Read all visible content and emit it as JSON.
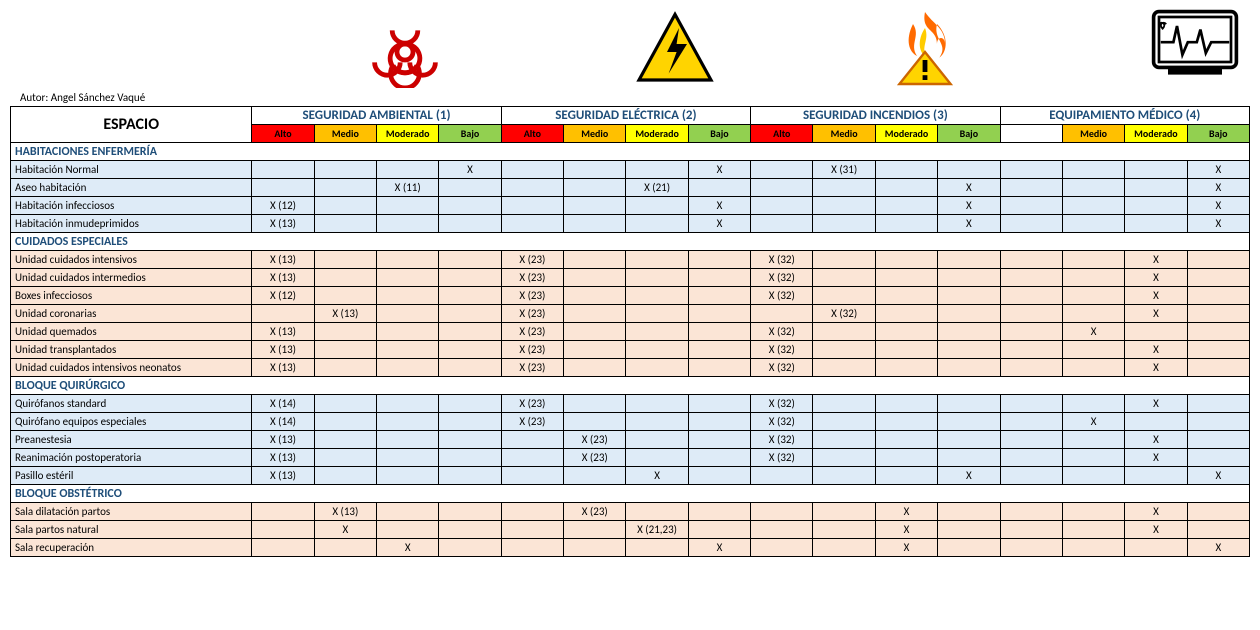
{
  "author_label": "Autor: Angel Sánchez Vaqué",
  "espacio_label": "ESPACIO",
  "categories": [
    {
      "key": "ambiental",
      "title": "SEGURIDAD AMBIENTAL (1)"
    },
    {
      "key": "electrica",
      "title": "SEGURIDAD ELÉCTRICA (2)"
    },
    {
      "key": "incendios",
      "title": "SEGURIDAD INCENDIOS (3)"
    },
    {
      "key": "medico",
      "title": "EQUIPAMIENTO MÉDICO (4)"
    }
  ],
  "risk_levels": {
    "alto": "Alto",
    "medio": "Medio",
    "moderado": "Moderado",
    "bajo": "Bajo"
  },
  "risk_colors": {
    "alto": "#ff0000",
    "medio": "#ffc000",
    "moderado": "#ffff00",
    "bajo": "#92d050"
  },
  "header_text_color": "#1f4e79",
  "section_bg": {
    "enf": "#deebf7",
    "cui": "#fbe5d6",
    "quir": "#deebf7",
    "obs": "#fbe5d6"
  },
  "medico_alto_blank": true,
  "sections": [
    {
      "id": "enf",
      "title": "HABITACIONES ENFERMERÍA",
      "rows": [
        {
          "label": "Habitación Normal",
          "cells": {
            "ambiental": {
              "bajo": "X"
            },
            "electrica": {
              "bajo": "X"
            },
            "incendios": {
              "medio": "X (31)"
            },
            "medico": {
              "bajo": "X"
            }
          }
        },
        {
          "label": "Aseo habitación",
          "cells": {
            "ambiental": {
              "moderado": "X (11)"
            },
            "electrica": {
              "moderado": "X (21)"
            },
            "incendios": {
              "bajo": "X"
            },
            "medico": {
              "bajo": "X"
            }
          }
        },
        {
          "label": "Habitación infecciosos",
          "cells": {
            "ambiental": {
              "alto": "X (12)"
            },
            "electrica": {
              "bajo": "X"
            },
            "incendios": {
              "bajo": "X"
            },
            "medico": {
              "bajo": "X"
            }
          }
        },
        {
          "label": "Habitación inmudeprimidos",
          "cells": {
            "ambiental": {
              "alto": "X (13)"
            },
            "electrica": {
              "bajo": "X"
            },
            "incendios": {
              "bajo": "X"
            },
            "medico": {
              "bajo": "X"
            }
          }
        }
      ]
    },
    {
      "id": "cui",
      "title": "CUIDADOS ESPECIALES",
      "rows": [
        {
          "label": "Unidad cuidados intensivos",
          "cells": {
            "ambiental": {
              "alto": "X (13)"
            },
            "electrica": {
              "alto": "X (23)"
            },
            "incendios": {
              "alto": "X (32)"
            },
            "medico": {
              "moderado": "X"
            }
          }
        },
        {
          "label": "Unidad cuidados intermedios",
          "cells": {
            "ambiental": {
              "alto": "X (13)"
            },
            "electrica": {
              "alto": "X (23)"
            },
            "incendios": {
              "alto": "X (32)"
            },
            "medico": {
              "moderado": "X"
            }
          }
        },
        {
          "label": "Boxes infecciosos",
          "cells": {
            "ambiental": {
              "alto": "X (12)"
            },
            "electrica": {
              "alto": "X (23)"
            },
            "incendios": {
              "alto": "X (32)"
            },
            "medico": {
              "moderado": "X"
            }
          }
        },
        {
          "label": "Unidad coronarias",
          "cells": {
            "ambiental": {
              "medio": "X (13)"
            },
            "electrica": {
              "alto": "X (23)"
            },
            "incendios": {
              "medio": "X (32)"
            },
            "medico": {
              "moderado": "X"
            }
          }
        },
        {
          "label": "Unidad quemados",
          "cells": {
            "ambiental": {
              "alto": "X (13)"
            },
            "electrica": {
              "alto": "X (23)"
            },
            "incendios": {
              "alto": "X (32)"
            },
            "medico": {
              "medio": "X"
            }
          }
        },
        {
          "label": "Unidad transplantados",
          "cells": {
            "ambiental": {
              "alto": "X (13)"
            },
            "electrica": {
              "alto": "X (23)"
            },
            "incendios": {
              "alto": "X (32)"
            },
            "medico": {
              "moderado": "X"
            }
          }
        },
        {
          "label": "Unidad cuidados intensivos neonatos",
          "cells": {
            "ambiental": {
              "alto": "X (13)"
            },
            "electrica": {
              "alto": "X (23)"
            },
            "incendios": {
              "alto": "X (32)"
            },
            "medico": {
              "moderado": "X"
            }
          }
        }
      ]
    },
    {
      "id": "quir",
      "title": "BLOQUE QUIRÚRGICO",
      "rows": [
        {
          "label": "Quirófanos  standard",
          "cells": {
            "ambiental": {
              "alto": "X (14)"
            },
            "electrica": {
              "alto": "X (23)"
            },
            "incendios": {
              "alto": "X (32)"
            },
            "medico": {
              "moderado": "X"
            }
          }
        },
        {
          "label": "Quirófano equipos especiales",
          "cells": {
            "ambiental": {
              "alto": "X (14)"
            },
            "electrica": {
              "alto": "X (23)"
            },
            "incendios": {
              "alto": "X (32)"
            },
            "medico": {
              "medio": "X"
            }
          }
        },
        {
          "label": "Preanestesia",
          "cells": {
            "ambiental": {
              "alto": "X (13)"
            },
            "electrica": {
              "medio": "X (23)"
            },
            "incendios": {
              "alto": "X (32)"
            },
            "medico": {
              "moderado": "X"
            }
          }
        },
        {
          "label": "Reanimación postoperatoria",
          "cells": {
            "ambiental": {
              "alto": "X (13)"
            },
            "electrica": {
              "medio": "X (23)"
            },
            "incendios": {
              "alto": "X (32)"
            },
            "medico": {
              "moderado": "X"
            }
          }
        },
        {
          "label": "Pasillo estéril",
          "cells": {
            "ambiental": {
              "alto": "X (13)"
            },
            "electrica": {
              "moderado": "X"
            },
            "incendios": {
              "bajo": "X"
            },
            "medico": {
              "bajo": "X"
            }
          }
        }
      ]
    },
    {
      "id": "obs",
      "title": "BLOQUE OBSTÉTRICO",
      "rows": [
        {
          "label": "Sala dilatación partos",
          "cells": {
            "ambiental": {
              "medio": "X (13)"
            },
            "electrica": {
              "medio": "X (23)"
            },
            "incendios": {
              "moderado": "X"
            },
            "medico": {
              "moderado": "X"
            }
          }
        },
        {
          "label": "Sala partos natural",
          "cells": {
            "ambiental": {
              "medio": "X"
            },
            "electrica": {
              "moderado": "X (21,23)"
            },
            "incendios": {
              "moderado": "X"
            },
            "medico": {
              "moderado": "X"
            }
          }
        },
        {
          "label": "Sala recuperación",
          "cells": {
            "ambiental": {
              "moderado": "X"
            },
            "electrica": {
              "bajo": "X"
            },
            "incendios": {
              "moderado": "X"
            },
            "medico": {
              "bajo": "X"
            }
          }
        }
      ]
    }
  ]
}
